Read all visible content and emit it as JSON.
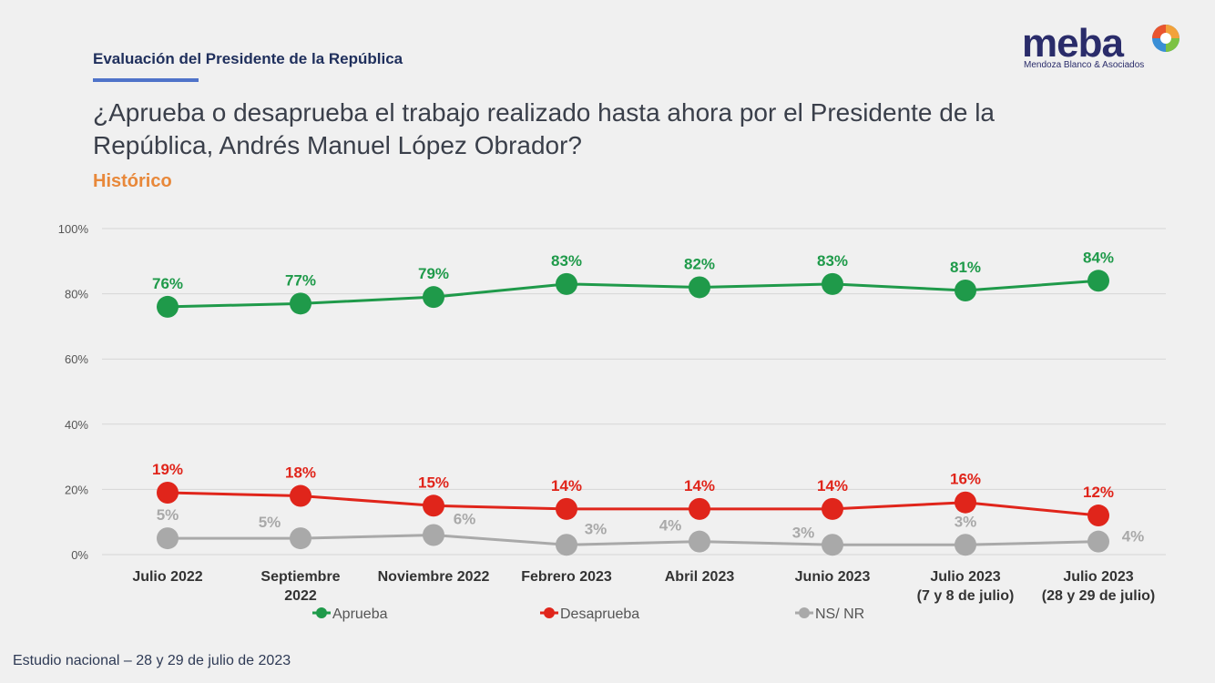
{
  "header": {
    "section_title": "Evaluación del Presidente de la República",
    "question": "¿Aprueba o desaprueba el trabajo realizado hasta ahora por el Presidente de la República, Andrés Manuel López Obrador?",
    "subtitle": "Histórico"
  },
  "logo": {
    "word": "meba",
    "tagline": "Mendoza Blanco & Asociados"
  },
  "footer": {
    "note": "Estudio nacional – 28 y 29 de julio de 2023"
  },
  "chart_data": {
    "type": "line",
    "categories": [
      [
        "Julio 2022"
      ],
      [
        "Septiembre",
        "2022"
      ],
      [
        "Noviembre 2022"
      ],
      [
        "Febrero 2023"
      ],
      [
        "Abril 2023"
      ],
      [
        "Junio 2023"
      ],
      [
        "Julio 2023",
        "(7 y 8 de julio)"
      ],
      [
        "Julio 2023",
        "(28 y 29 de julio)"
      ]
    ],
    "ylim": [
      0,
      100
    ],
    "yticks": [
      0,
      20,
      40,
      60,
      80,
      100
    ],
    "ytick_labels": [
      "0%",
      "20%",
      "40%",
      "60%",
      "80%",
      "100%"
    ],
    "grid": true,
    "legend_position": "bottom",
    "series": [
      {
        "name": "Aprueba",
        "color": "#1f9a4a",
        "label_color": "#1f9a4a",
        "values": [
          76,
          77,
          79,
          83,
          82,
          83,
          81,
          84
        ],
        "labels": [
          "76%",
          "77%",
          "79%",
          "83%",
          "82%",
          "83%",
          "81%",
          "84%"
        ]
      },
      {
        "name": "Desaprueba",
        "color": "#e0251b",
        "label_color": "#e0251b",
        "values": [
          19,
          18,
          15,
          14,
          14,
          14,
          16,
          12
        ],
        "labels": [
          "19%",
          "18%",
          "15%",
          "14%",
          "14%",
          "14%",
          "16%",
          "12%"
        ]
      },
      {
        "name": "NS/ NR",
        "color": "#a9a9a9",
        "label_color": "#a9a9a9",
        "values": [
          5,
          5,
          6,
          3,
          4,
          3,
          3,
          4
        ],
        "labels": [
          "5%",
          "5%",
          "6%",
          "3%",
          "4%",
          "3%",
          "3%",
          "4%"
        ]
      }
    ]
  }
}
